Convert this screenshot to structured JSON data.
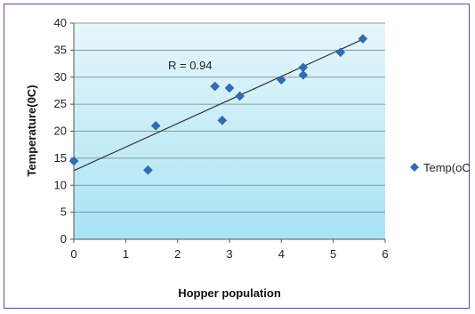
{
  "chart_data": {
    "type": "scatter",
    "title": "",
    "xlabel": "Hopper population",
    "ylabel": "Temperature(0C)",
    "xlim": [
      0,
      6
    ],
    "ylim": [
      0,
      40
    ],
    "x_ticks": [
      0,
      1,
      2,
      3,
      4,
      5,
      6
    ],
    "y_ticks": [
      0,
      5,
      10,
      15,
      20,
      25,
      30,
      35,
      40
    ],
    "grid": "horizontal",
    "legend_position": "right",
    "annotation": "R = 0.94",
    "series": [
      {
        "name": "Temp(oC)",
        "color": "#2f6db5",
        "marker": "diamond",
        "points": [
          {
            "x": 0.0,
            "y": 14.5
          },
          {
            "x": 1.43,
            "y": 12.8
          },
          {
            "x": 1.58,
            "y": 21.0
          },
          {
            "x": 2.72,
            "y": 28.3
          },
          {
            "x": 2.86,
            "y": 22.0
          },
          {
            "x": 3.0,
            "y": 28.0
          },
          {
            "x": 3.2,
            "y": 26.5
          },
          {
            "x": 4.0,
            "y": 29.5
          },
          {
            "x": 4.42,
            "y": 31.8
          },
          {
            "x": 4.42,
            "y": 30.4
          },
          {
            "x": 5.14,
            "y": 34.6
          },
          {
            "x": 5.57,
            "y": 37.1
          }
        ]
      }
    ],
    "trendline": {
      "x": [
        0,
        5.57
      ],
      "y": [
        12.7,
        37.0
      ],
      "color": "#333333"
    },
    "plot_background": {
      "top_color": "#e6f6fc",
      "bottom_color": "#a9e3f3"
    }
  }
}
